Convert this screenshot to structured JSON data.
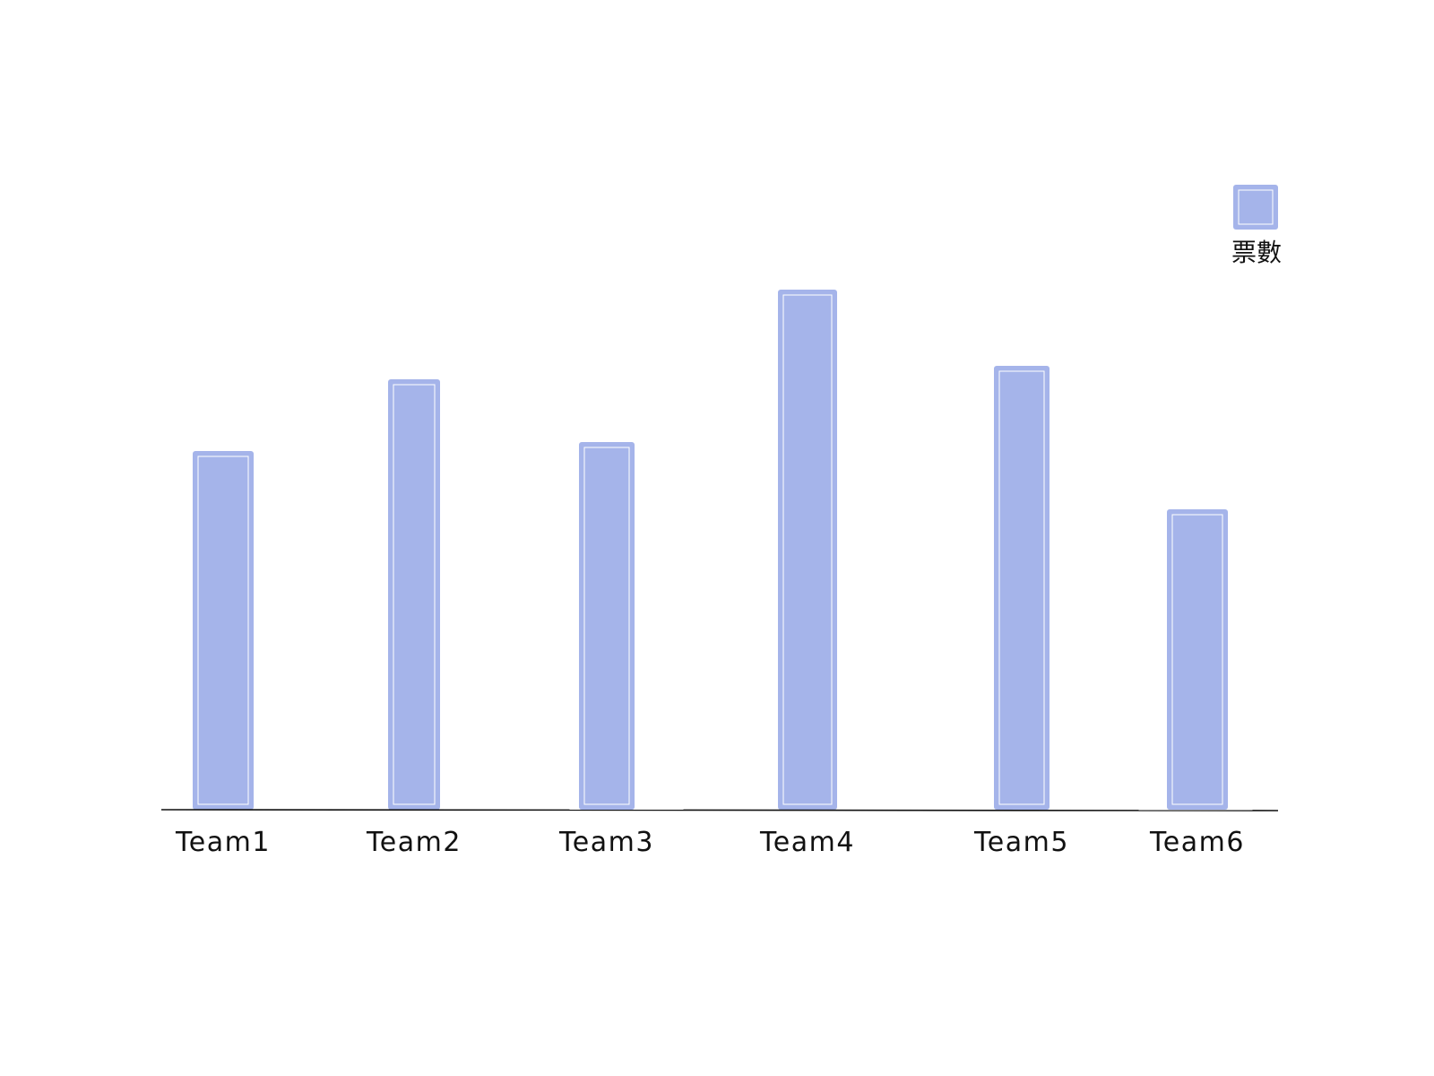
{
  "chart_data": {
    "type": "bar",
    "categories": [
      "Team1",
      "Team2",
      "Team3",
      "Team4",
      "Team5",
      "Team6"
    ],
    "series": [
      {
        "name": "票數",
        "values": [
          40,
          48,
          41,
          58,
          49.5,
          33.5
        ]
      }
    ],
    "title": "",
    "xlabel": "",
    "ylabel": "",
    "ylim": [
      0,
      70
    ],
    "grid": false,
    "legend": "top-right",
    "colors": {
      "bar": "#a5b4ea",
      "bar_inner": "#ffffff",
      "axis": "#111111",
      "text": "#111111"
    }
  }
}
